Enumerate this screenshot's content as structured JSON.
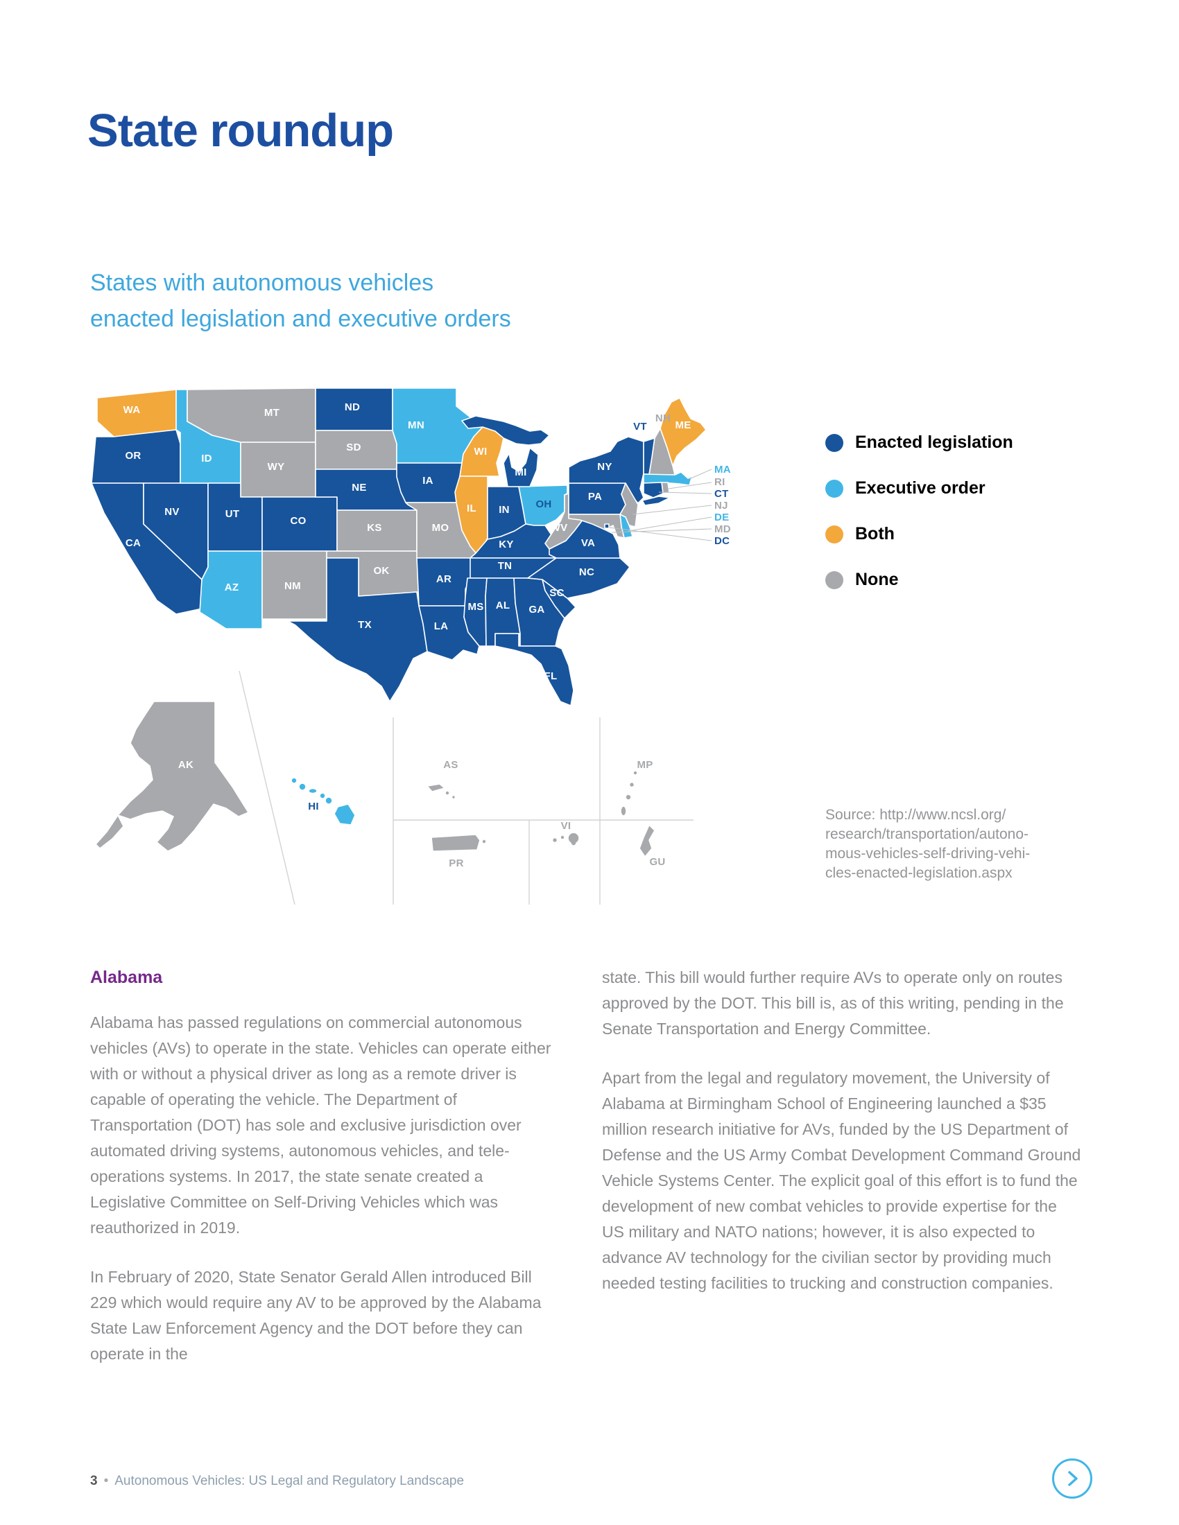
{
  "page": {
    "title": "State roundup",
    "subtitle": [
      "States with autonomous vehicles",
      "enacted legislation and executive orders"
    ]
  },
  "legend": {
    "items": [
      {
        "label": "Enacted legislation",
        "color": "#17549c"
      },
      {
        "label": "Executive order",
        "color": "#41b6e6"
      },
      {
        "label": "Both",
        "color": "#f3a83c"
      },
      {
        "label": "None",
        "color": "#a7a9ac"
      }
    ]
  },
  "map": {
    "status_colors": {
      "enacted": "#17549c",
      "executive": "#41b6e6",
      "both": "#f3a83c",
      "none": "#a7a9ac"
    },
    "states": [
      {
        "abbr": "WA",
        "status": "both"
      },
      {
        "abbr": "OR",
        "status": "enacted"
      },
      {
        "abbr": "CA",
        "status": "enacted"
      },
      {
        "abbr": "NV",
        "status": "enacted"
      },
      {
        "abbr": "ID",
        "status": "executive"
      },
      {
        "abbr": "MT",
        "status": "none"
      },
      {
        "abbr": "WY",
        "status": "none"
      },
      {
        "abbr": "UT",
        "status": "enacted"
      },
      {
        "abbr": "AZ",
        "status": "executive"
      },
      {
        "abbr": "CO",
        "status": "enacted"
      },
      {
        "abbr": "NM",
        "status": "none"
      },
      {
        "abbr": "ND",
        "status": "enacted"
      },
      {
        "abbr": "SD",
        "status": "none"
      },
      {
        "abbr": "NE",
        "status": "enacted"
      },
      {
        "abbr": "KS",
        "status": "none"
      },
      {
        "abbr": "OK",
        "status": "none"
      },
      {
        "abbr": "TX",
        "status": "enacted"
      },
      {
        "abbr": "MN",
        "status": "executive"
      },
      {
        "abbr": "IA",
        "status": "enacted"
      },
      {
        "abbr": "MO",
        "status": "none"
      },
      {
        "abbr": "AR",
        "status": "enacted"
      },
      {
        "abbr": "LA",
        "status": "enacted"
      },
      {
        "abbr": "WI",
        "status": "both"
      },
      {
        "abbr": "IL",
        "status": "both"
      },
      {
        "abbr": "IN",
        "status": "enacted"
      },
      {
        "abbr": "OH",
        "status": "executive"
      },
      {
        "abbr": "MI",
        "status": "enacted"
      },
      {
        "abbr": "KY",
        "status": "enacted"
      },
      {
        "abbr": "TN",
        "status": "enacted"
      },
      {
        "abbr": "MS",
        "status": "enacted"
      },
      {
        "abbr": "AL",
        "status": "enacted"
      },
      {
        "abbr": "GA",
        "status": "enacted"
      },
      {
        "abbr": "FL",
        "status": "enacted"
      },
      {
        "abbr": "SC",
        "status": "enacted"
      },
      {
        "abbr": "NC",
        "status": "enacted"
      },
      {
        "abbr": "VA",
        "status": "enacted"
      },
      {
        "abbr": "WV",
        "status": "none"
      },
      {
        "abbr": "PA",
        "status": "enacted"
      },
      {
        "abbr": "NY",
        "status": "enacted"
      },
      {
        "abbr": "NJ",
        "status": "none"
      },
      {
        "abbr": "DE",
        "status": "executive"
      },
      {
        "abbr": "MD",
        "status": "none"
      },
      {
        "abbr": "DC",
        "status": "enacted"
      },
      {
        "abbr": "VT",
        "status": "enacted"
      },
      {
        "abbr": "NH",
        "status": "none"
      },
      {
        "abbr": "ME",
        "status": "both"
      },
      {
        "abbr": "MA",
        "status": "executive"
      },
      {
        "abbr": "RI",
        "status": "none"
      },
      {
        "abbr": "CT",
        "status": "enacted"
      },
      {
        "abbr": "AK",
        "status": "none"
      },
      {
        "abbr": "HI",
        "status": "executive"
      },
      {
        "abbr": "AS",
        "status": "none"
      },
      {
        "abbr": "MP",
        "status": "none"
      },
      {
        "abbr": "PR",
        "status": "none"
      },
      {
        "abbr": "VI",
        "status": "none"
      },
      {
        "abbr": "GU",
        "status": "none"
      }
    ]
  },
  "source": {
    "lines": [
      "Source: http://www.ncsl.org/",
      "research/transportation/autono-",
      "mous-vehicles-self-driving-vehi-",
      "cles-enacted-legislation.aspx"
    ]
  },
  "article": {
    "heading": "Alabama",
    "left_paragraphs": [
      "Alabama has passed regulations on commercial autonomous vehicles (AVs) to operate in the state. Vehicles can operate either with or without a physical driver as long as a remote driver is capable of operating the vehicle. The Department of Transportation (DOT) has sole and exclusive jurisdiction over automated driving systems, autonomous vehicles, and tele-operations systems. In 2017, the state senate created a Legislative Committee on Self-Driving Vehicles which was reauthorized in 2019.",
      "In February of 2020, State Senator Gerald Allen introduced Bill 229 which would require any AV to be approved by the Alabama State Law Enforcement Agency and the DOT before they can operate in the"
    ],
    "right_paragraphs": [
      "state. This bill would further require AVs to operate only on routes approved by the DOT. This bill is, as of this writing, pending in the Senate Transportation and Energy Committee.",
      "Apart from the legal and regulatory movement, the University of Alabama at Birmingham School of Engineering launched a $35 million research initiative for AVs, funded by the US Department of Defense and the US Army Combat Development Command Ground Vehicle Systems Center. The explicit goal of this effort is to fund the development of new combat vehicles to provide expertise for the US military and NATO nations; however, it is also expected to advance AV technology for the civilian sector by providing much needed testing facilities to trucking and construction companies."
    ]
  },
  "footer": {
    "page_number": "3",
    "separator": "•",
    "text": "Autonomous Vehicles: US Legal and Regulatory Landscape"
  }
}
